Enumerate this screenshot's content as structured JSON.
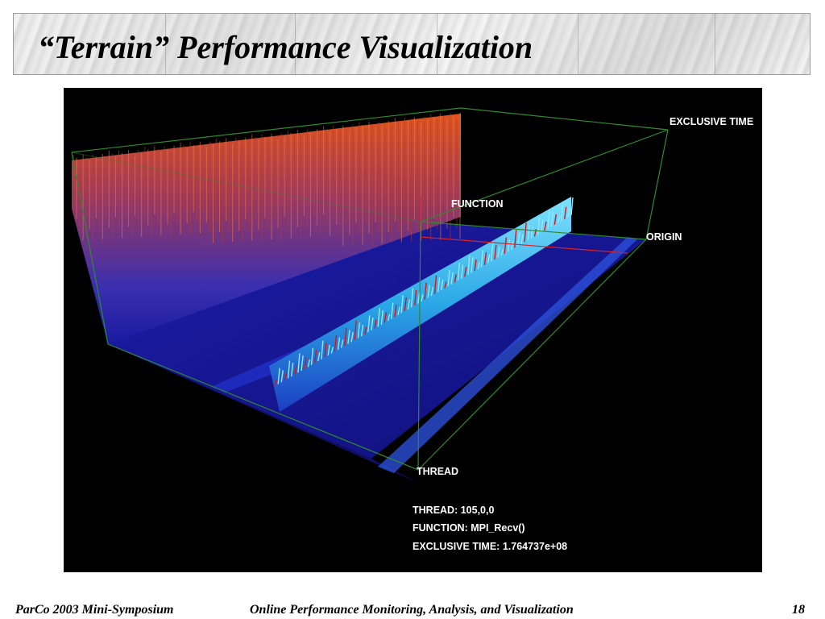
{
  "slide": {
    "title": "“Terrain” Performance Visualization",
    "footer_left": "ParCo 2003 Mini-Symposium",
    "footer_center": "Online Performance Monitoring, Analysis, and Visualization",
    "page_number": "18"
  },
  "visualization": {
    "axis_labels": {
      "exclusive_time": "EXCLUSIVE TIME",
      "function": "FUNCTION",
      "origin": "ORIGIN",
      "thread": "THREAD"
    },
    "readout": {
      "thread": "THREAD:  105,0,0",
      "function": "FUNCTION:  MPI_Recv()",
      "exclusive_time": "EXCLUSIVE TIME:  1.764737e+08"
    },
    "colors": {
      "background": "#000000",
      "box_edges": "#2f8a2f",
      "floor": "#1a1a9e",
      "tall_peaks": "#d9501e",
      "ridge": "#22b7e8",
      "ridge_tops": "#d01818",
      "origin_marker": "#dd2222"
    }
  }
}
